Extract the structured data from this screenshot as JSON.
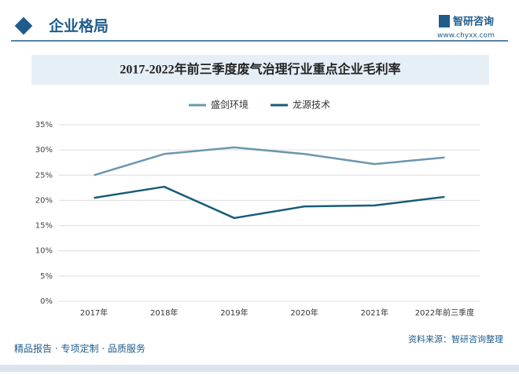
{
  "header": {
    "title": "企业格局",
    "brand": "智研咨询",
    "url": "www.chyxx.com"
  },
  "footer": {
    "left": "精品报告 · 专项定制 · 品质服务",
    "right": "资料来源：智研咨询整理"
  },
  "chart_data": {
    "type": "line",
    "title": "2017-2022年前三季度废气治理行业重点企业毛利率",
    "categories": [
      "2017年",
      "2018年",
      "2019年",
      "2020年",
      "2021年",
      "2022年前三季度"
    ],
    "series": [
      {
        "name": "盛剑环境",
        "color": "#6b97ad",
        "values": [
          25.0,
          29.2,
          30.5,
          29.2,
          27.2,
          28.5
        ]
      },
      {
        "name": "龙源技术",
        "color": "#175d78",
        "values": [
          20.5,
          22.7,
          16.5,
          18.8,
          19.0,
          20.7
        ]
      }
    ],
    "ylim": [
      0,
      35
    ],
    "yticks": [
      {
        "value": 0,
        "label": "0%"
      },
      {
        "value": 5,
        "label": "5%"
      },
      {
        "value": 10,
        "label": "10%"
      },
      {
        "value": 15,
        "label": "15%"
      },
      {
        "value": 20,
        "label": "20%"
      },
      {
        "value": 25,
        "label": "25%"
      },
      {
        "value": 30,
        "label": "30%"
      },
      {
        "value": 35,
        "label": "35%"
      }
    ],
    "grid": true,
    "legend": "top"
  }
}
